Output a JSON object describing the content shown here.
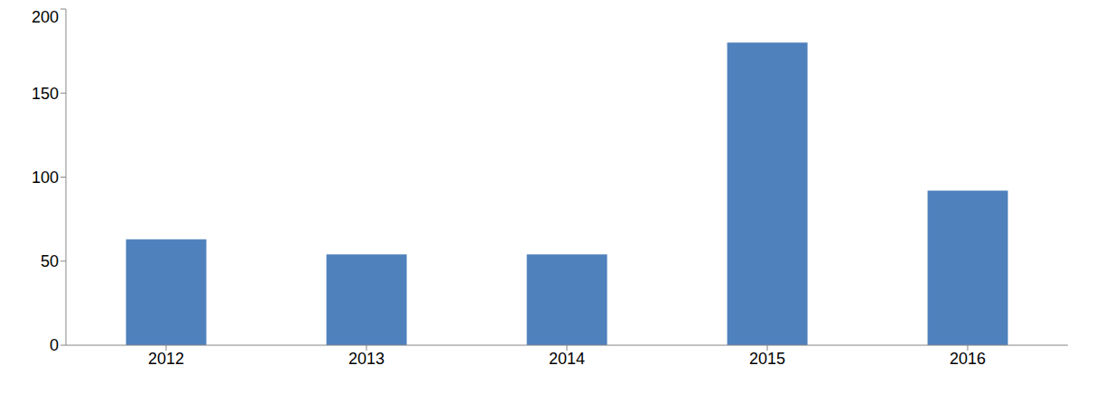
{
  "chart_data": {
    "type": "bar",
    "categories": [
      "2012",
      "2013",
      "2014",
      "2015",
      "2016"
    ],
    "values": [
      63,
      54,
      54,
      180,
      92
    ],
    "color": "#4f81bd",
    "ylim": [
      0,
      200
    ],
    "yticks": [
      0,
      50,
      100,
      150,
      200
    ],
    "grid": false
  }
}
